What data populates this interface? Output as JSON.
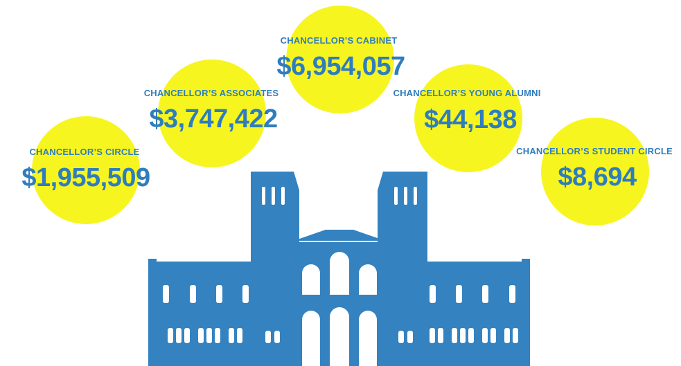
{
  "colors": {
    "circle": "#f7f520",
    "text": "#2f7dbd",
    "building": "#3482c0",
    "window": "#ffffff"
  },
  "icon": "royce-hall-building-silhouette",
  "circles": [
    {
      "name": "chancellors-circle",
      "label": "CHANCELLOR’S CIRCLE",
      "amount": "$1,955,509"
    },
    {
      "name": "chancellors-associates",
      "label": "CHANCELLOR’S ASSOCIATES",
      "amount": "$3,747,422"
    },
    {
      "name": "chancellors-cabinet",
      "label": "CHANCELLOR’S CABINET",
      "amount": "$6,954,057"
    },
    {
      "name": "chancellors-young-alumni",
      "label": "CHANCELLOR’S YOUNG ALUMNI",
      "amount": "$44,138"
    },
    {
      "name": "chancellors-student-circle",
      "label": "CHANCELLOR’S STUDENT CIRCLE",
      "amount": "$8,694"
    }
  ]
}
